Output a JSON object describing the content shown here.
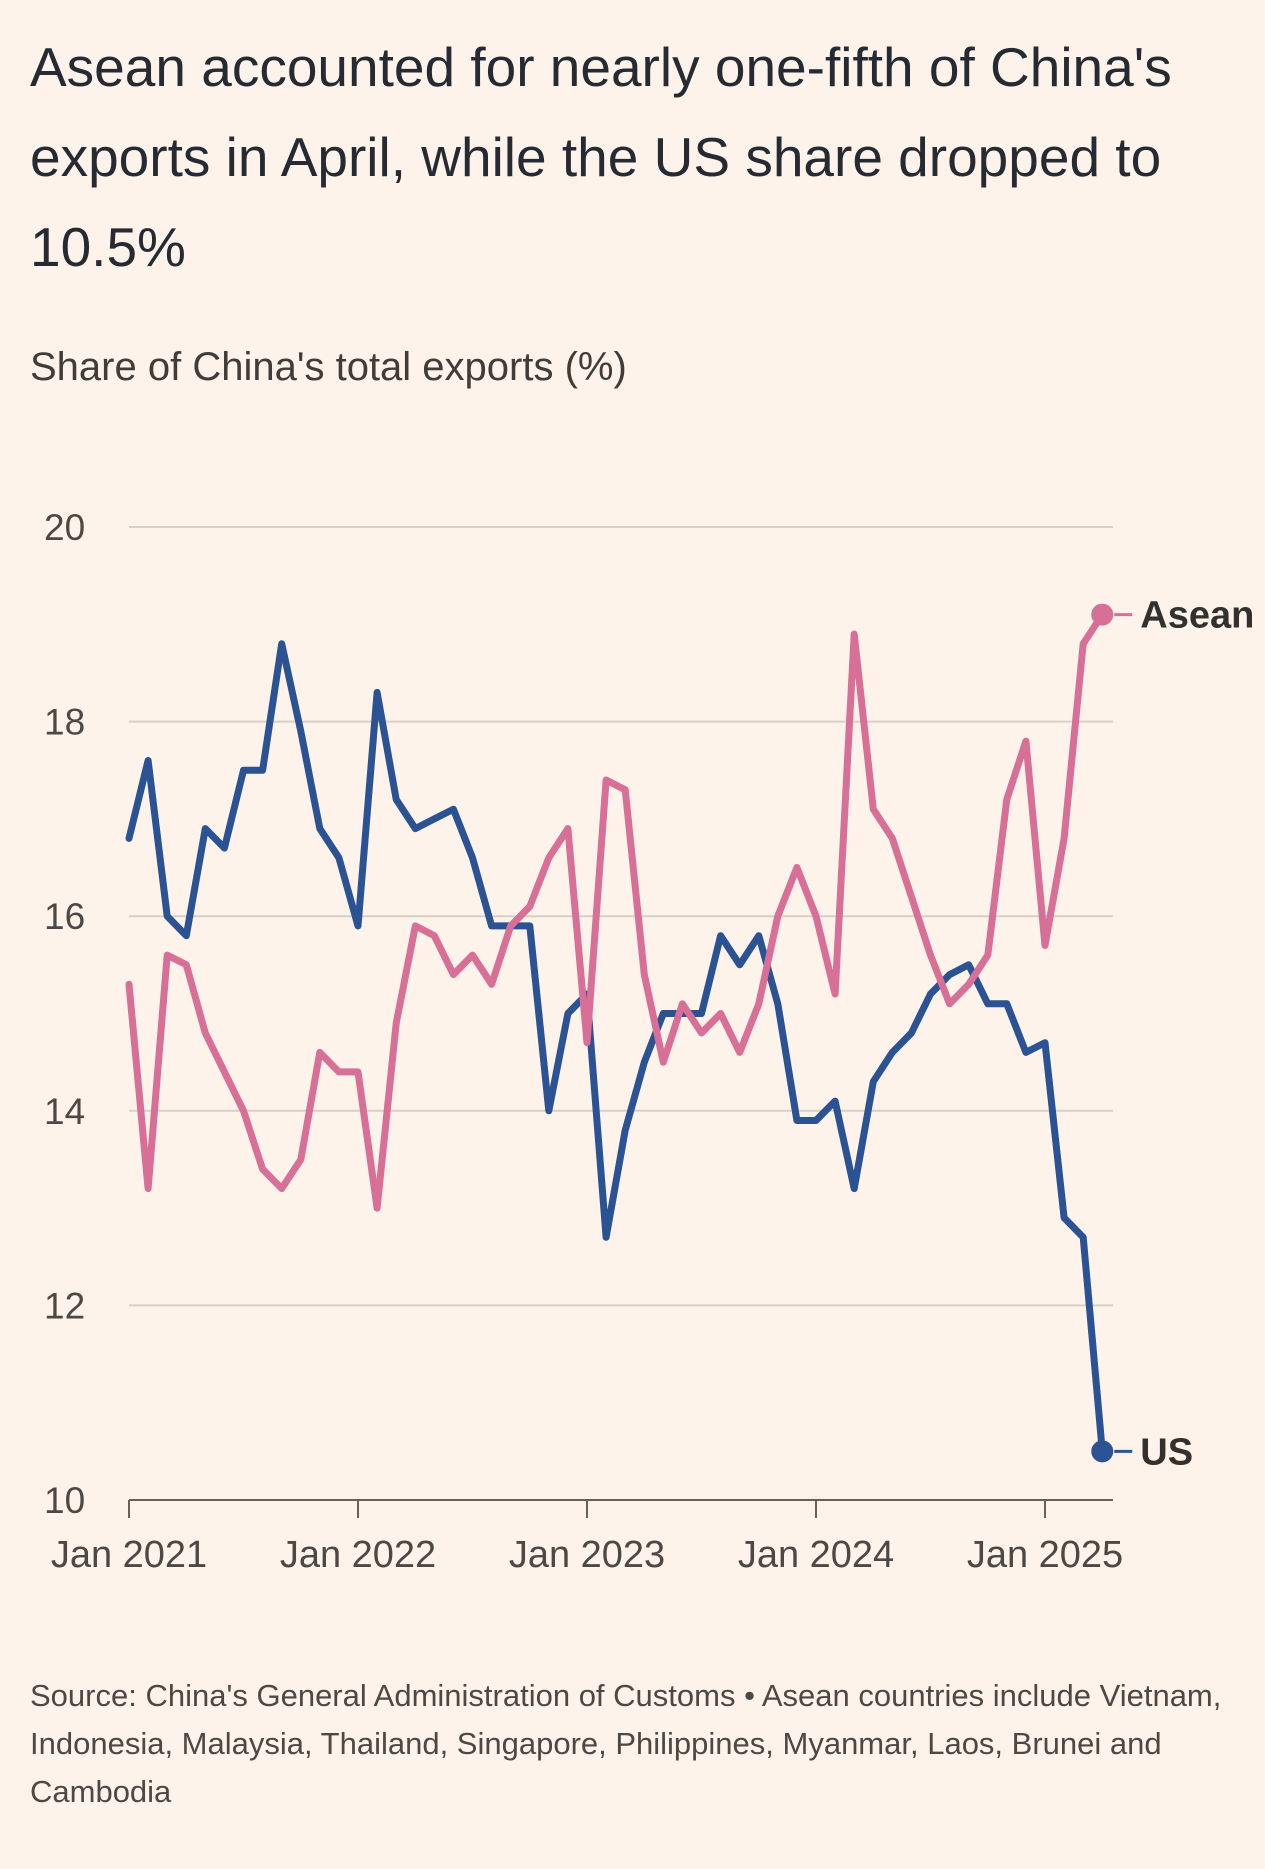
{
  "title": "Asean accounted for nearly one-fifth of China's exports in April, while the US share dropped to 10.5%",
  "subtitle": "Share of China's total exports (%)",
  "source": "Source: China's General Administration of Customs • Asean countries include Vietnam, Indonesia, Malaysia, Thailand, Singapore, Philippines, Myanmar, Laos, Brunei and Cambodia",
  "colors": {
    "background": "#fdf3ea",
    "us": "#2b5393",
    "asean": "#d86f97",
    "grid": "#d8d0c7",
    "axis": "#66605c"
  },
  "chart_data": {
    "type": "line",
    "x_start": "Jan 2021",
    "x_end": "Apr 2025",
    "ylim": [
      10,
      20
    ],
    "yticks": [
      "10",
      "12",
      "14",
      "16",
      "18",
      "20"
    ],
    "xticks": [
      "Jan 2021",
      "Jan 2022",
      "Jan 2023",
      "Jan 2024",
      "Jan 2025"
    ],
    "grid": true,
    "series": [
      {
        "name": "US",
        "color": "#2b5393",
        "values": [
          16.8,
          17.6,
          16.0,
          15.8,
          16.9,
          16.7,
          17.5,
          17.5,
          18.8,
          17.9,
          16.9,
          16.6,
          15.9,
          18.3,
          17.2,
          16.9,
          17.0,
          17.1,
          16.6,
          15.9,
          15.9,
          15.9,
          14.0,
          15.0,
          15.2,
          12.7,
          13.8,
          14.5,
          15.0,
          15.0,
          15.0,
          15.8,
          15.5,
          15.8,
          15.1,
          13.9,
          13.9,
          14.1,
          13.2,
          14.3,
          14.6,
          14.8,
          15.2,
          15.4,
          15.5,
          15.1,
          15.1,
          14.6,
          14.7,
          12.9,
          12.7,
          10.5
        ]
      },
      {
        "name": "Asean",
        "color": "#d86f97",
        "values": [
          15.3,
          13.2,
          15.6,
          15.5,
          14.8,
          14.4,
          14.0,
          13.4,
          13.2,
          13.5,
          14.6,
          14.4,
          14.4,
          13.0,
          14.9,
          15.9,
          15.8,
          15.4,
          15.6,
          15.3,
          15.9,
          16.1,
          16.6,
          16.9,
          14.7,
          17.4,
          17.3,
          15.4,
          14.5,
          15.1,
          14.8,
          15.0,
          14.6,
          15.1,
          16.0,
          16.5,
          16.0,
          15.2,
          18.9,
          17.1,
          16.8,
          16.2,
          15.6,
          15.1,
          15.3,
          15.6,
          17.2,
          17.8,
          15.7,
          16.8,
          18.8,
          19.1
        ]
      }
    ],
    "end_labels": {
      "us": "US",
      "asean": "Asean"
    }
  }
}
